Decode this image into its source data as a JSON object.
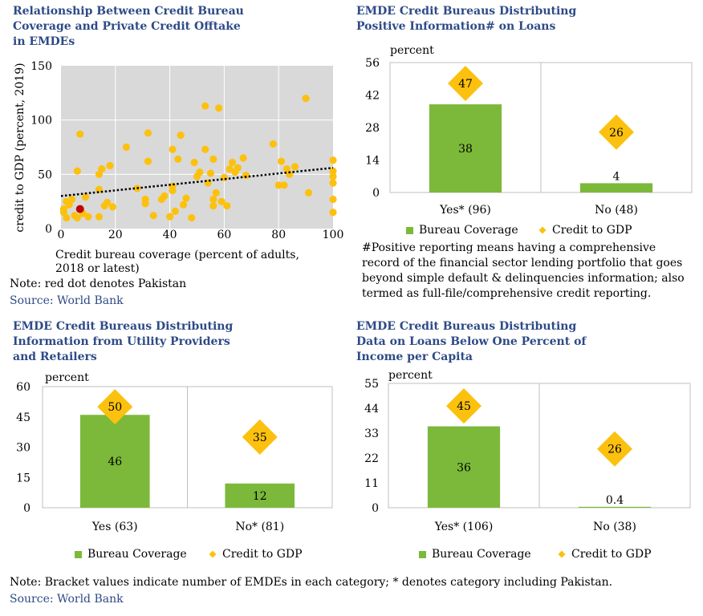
{
  "titles": {
    "scatter": [
      "Relationship Between Credit Bureau",
      "Coverage and Private Credit Offtake",
      "in EMDEs"
    ],
    "positive": [
      "EMDE Credit Bureaus Distributing",
      "Positive Information# on Loans"
    ],
    "utility": [
      "EMDE Credit Bureaus Distributing",
      "Information from Utility Providers",
      "and Retailers"
    ],
    "lowloans": [
      "EMDE Credit Bureaus Distributing",
      "Data on Loans Below One Percent of",
      "Income per Capita"
    ]
  },
  "notes": {
    "scatter_note": "Note: red dot denotes Pakistan",
    "scatter_source": "Source: World Bank",
    "positive_footnote": [
      "#Positive reporting means having a comprehensive",
      "record of the financial sector lending portfolio that goes",
      "beyond simple default & delinquencies information; also",
      "termed as full-file/comprehensive credit reporting."
    ],
    "bottom_note": "Note: Bracket values indicate number of EMDEs in each category; * denotes category including Pakistan.",
    "bottom_source": "Source: World Bank"
  },
  "colors": {
    "title": "#2e4a86",
    "bar": "#7cb93a",
    "diamond": "#fcc10f",
    "dot": "#fcc10f",
    "pakistan": "#c00000",
    "plot_bg": "#d9d9d9"
  },
  "chart_data": [
    {
      "type": "scatter",
      "xlabel": [
        "Credit bureau coverage (percent of adults,",
        "2018 or latest)"
      ],
      "ylabel": "credit to GDP (percent, 2019)",
      "xlim": [
        0,
        100
      ],
      "ylim": [
        0,
        150
      ],
      "xticks": [
        0,
        20,
        40,
        60,
        80,
        100
      ],
      "yticks": [
        0,
        50,
        100,
        150
      ],
      "trend": {
        "from": [
          0,
          30
        ],
        "to": [
          100,
          56
        ]
      },
      "highlight": {
        "label": "Pakistan",
        "x": 7,
        "y": 18
      },
      "points": [
        [
          1,
          18
        ],
        [
          1,
          15
        ],
        [
          2,
          25
        ],
        [
          2,
          10
        ],
        [
          3,
          22
        ],
        [
          4,
          27
        ],
        [
          5,
          12
        ],
        [
          6,
          10
        ],
        [
          6,
          53
        ],
        [
          7,
          87
        ],
        [
          8,
          14
        ],
        [
          9,
          29
        ],
        [
          10,
          11
        ],
        [
          14,
          50
        ],
        [
          14,
          36
        ],
        [
          14,
          11
        ],
        [
          15,
          55
        ],
        [
          16,
          21
        ],
        [
          17,
          24
        ],
        [
          18,
          58
        ],
        [
          19,
          20
        ],
        [
          24,
          75
        ],
        [
          28,
          37
        ],
        [
          32,
          88
        ],
        [
          32,
          62
        ],
        [
          31,
          27
        ],
        [
          31,
          23
        ],
        [
          34,
          12
        ],
        [
          37,
          27
        ],
        [
          38,
          30
        ],
        [
          40,
          11
        ],
        [
          41,
          73
        ],
        [
          41,
          35
        ],
        [
          41,
          39
        ],
        [
          42,
          16
        ],
        [
          43,
          64
        ],
        [
          44,
          86
        ],
        [
          45,
          22
        ],
        [
          46,
          28
        ],
        [
          48,
          10
        ],
        [
          49,
          61
        ],
        [
          50,
          48
        ],
        [
          51,
          52
        ],
        [
          53,
          73
        ],
        [
          53,
          113
        ],
        [
          54,
          42
        ],
        [
          55,
          51
        ],
        [
          56,
          21
        ],
        [
          56,
          27
        ],
        [
          56,
          64
        ],
        [
          57,
          33
        ],
        [
          58,
          111
        ],
        [
          59,
          25
        ],
        [
          60,
          47
        ],
        [
          61,
          21
        ],
        [
          62,
          55
        ],
        [
          63,
          61
        ],
        [
          64,
          52
        ],
        [
          65,
          56
        ],
        [
          67,
          65
        ],
        [
          68,
          49
        ],
        [
          78,
          78
        ],
        [
          80,
          40
        ],
        [
          81,
          62
        ],
        [
          82,
          40
        ],
        [
          83,
          55
        ],
        [
          84,
          50
        ],
        [
          86,
          57
        ],
        [
          90,
          120
        ],
        [
          91,
          33
        ],
        [
          100,
          63
        ],
        [
          100,
          53
        ],
        [
          100,
          48
        ],
        [
          100,
          42
        ],
        [
          100,
          27
        ],
        [
          100,
          15
        ]
      ]
    },
    {
      "type": "bar",
      "categories": [
        "Yes* (96)",
        "No (48)"
      ],
      "series": [
        {
          "name": "Bureau Coverage",
          "values": [
            38,
            4
          ]
        },
        {
          "name": "Credit to GDP",
          "values": [
            47,
            26
          ]
        }
      ],
      "ylabel": "percent",
      "ylim": [
        0,
        56
      ],
      "yticks": [
        0,
        14,
        28,
        42,
        56
      ],
      "legend": "bottom"
    },
    {
      "type": "bar",
      "categories": [
        "Yes (63)",
        "No* (81)"
      ],
      "series": [
        {
          "name": "Bureau Coverage",
          "values": [
            46,
            12
          ]
        },
        {
          "name": "Credit to GDP",
          "values": [
            50,
            35
          ]
        }
      ],
      "ylabel": "percent",
      "ylim": [
        0,
        60
      ],
      "yticks": [
        0,
        15,
        30,
        45,
        60
      ],
      "legend": "bottom"
    },
    {
      "type": "bar",
      "categories": [
        "Yes* (106)",
        "No (38)"
      ],
      "series": [
        {
          "name": "Bureau Coverage",
          "values": [
            36,
            0.4
          ]
        },
        {
          "name": "Credit to GDP",
          "values": [
            45,
            26
          ]
        }
      ],
      "ylabel": "percent",
      "ylim": [
        0,
        55
      ],
      "yticks": [
        0,
        11,
        22,
        33,
        44,
        55
      ],
      "legend": "bottom"
    }
  ]
}
